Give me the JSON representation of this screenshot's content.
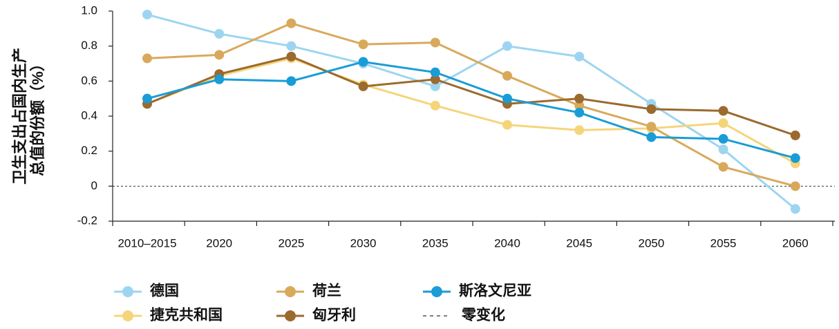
{
  "chart_data": {
    "type": "line",
    "y_label": [
      "卫生支出占国内生产",
      "总值的份额（%）"
    ],
    "categories": [
      "2010–2015",
      "2020",
      "2025",
      "2030",
      "2035",
      "2040",
      "2045",
      "2050",
      "2055",
      "2060"
    ],
    "series": [
      {
        "name": "德国",
        "color": "#9dd5f0",
        "values": [
          0.98,
          0.87,
          0.8,
          0.7,
          0.57,
          0.8,
          0.74,
          0.47,
          0.21,
          -0.13
        ]
      },
      {
        "name": "捷克共和国",
        "color": "#f5d57a",
        "values": [
          0.47,
          0.63,
          0.73,
          0.58,
          0.46,
          0.35,
          0.32,
          0.33,
          0.36,
          0.13
        ]
      },
      {
        "name": "荷兰",
        "color": "#d9a95b",
        "values": [
          0.73,
          0.75,
          0.93,
          0.81,
          0.82,
          0.63,
          0.46,
          0.34,
          0.11,
          0.0
        ]
      },
      {
        "name": "匈牙利",
        "color": "#9b6a2e",
        "values": [
          0.47,
          0.64,
          0.74,
          0.57,
          0.61,
          0.47,
          0.5,
          0.44,
          0.43,
          0.29
        ]
      },
      {
        "name": "斯洛文尼亚",
        "color": "#1a9cd6",
        "values": [
          0.5,
          0.61,
          0.6,
          0.71,
          0.65,
          0.5,
          0.42,
          0.28,
          0.27,
          0.16
        ]
      }
    ],
    "zero_line": {
      "name": "零变化",
      "value": 0
    },
    "ylim": [
      -0.2,
      1.0
    ],
    "yticks": [
      -0.2,
      0.2,
      0,
      0.4,
      0.6,
      0.8,
      {
        "value": 1,
        "label": "1.0"
      }
    ]
  }
}
